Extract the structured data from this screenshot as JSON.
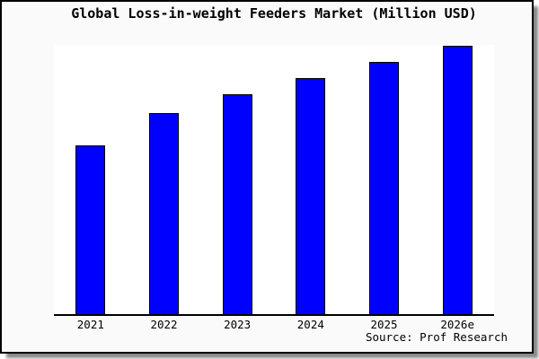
{
  "chart": {
    "title": "Global Loss-in-weight Feeders Market (Million USD)",
    "source": "Source: Prof Research"
  },
  "chart_data": {
    "type": "bar",
    "title": "Global Loss-in-weight Feeders Market (Million USD)",
    "categories": [
      "2021",
      "2022",
      "2023",
      "2024",
      "2025",
      "2026e"
    ],
    "values": [
      63,
      75,
      82,
      88,
      94,
      100
    ],
    "value_scale": "relative bar height, percent of tallest (2026e) bar; no numeric y-axis shown",
    "xlabel": "",
    "ylabel": "",
    "ylim": [
      0,
      100
    ],
    "grid": false,
    "legend": false,
    "y_axis_visible": false,
    "annotations": [
      "Source: Prof Research"
    ],
    "bar_color": "#0000fe",
    "bar_edge_color": "#000000"
  },
  "colors": {
    "figure_background": "#fafafa",
    "plot_background": "#ffffff",
    "frame_border": "#000000",
    "axis_line": "#000000",
    "shadow": "#8a8a8a",
    "text": "#000000"
  }
}
